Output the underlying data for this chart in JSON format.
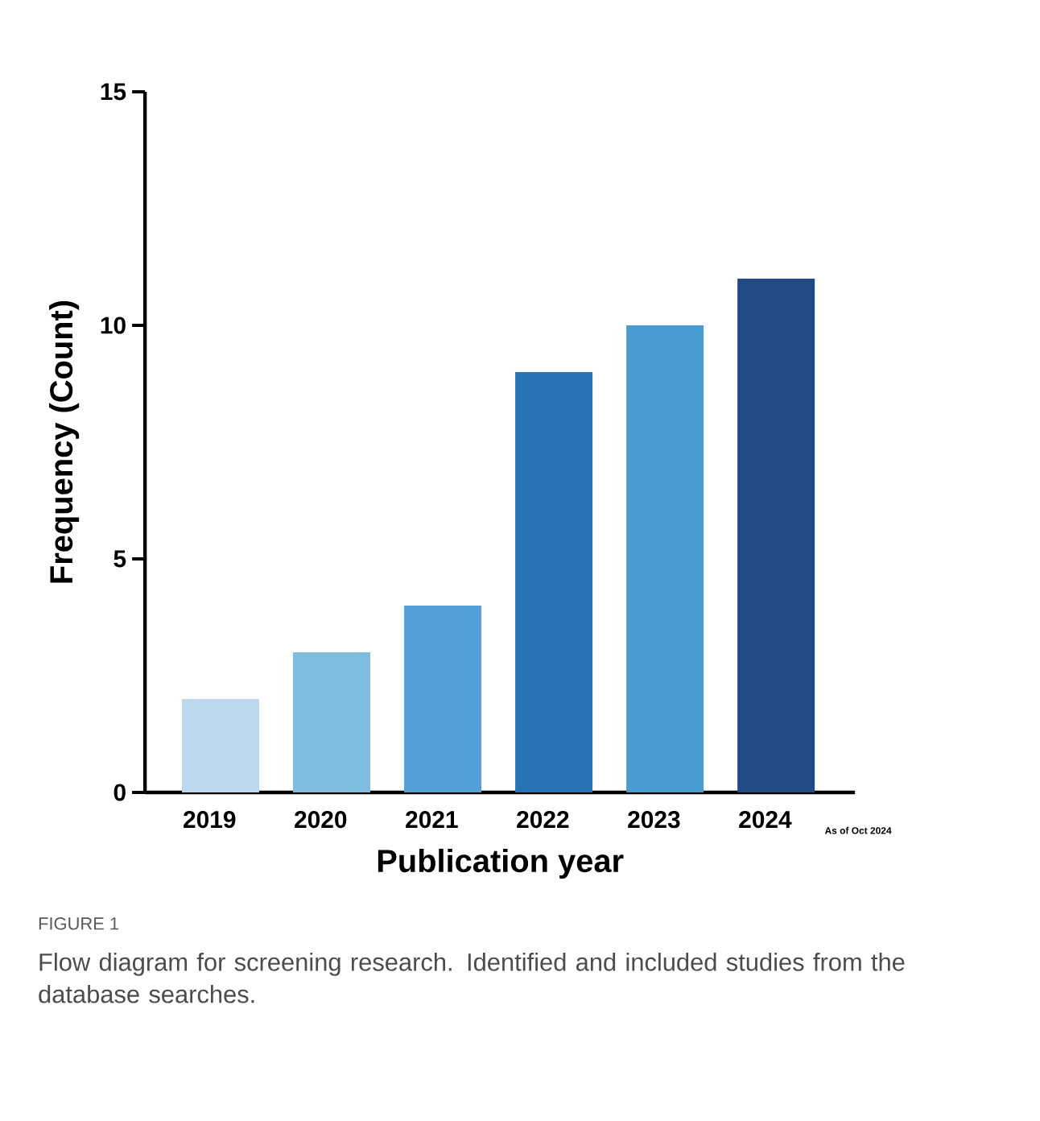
{
  "chart_data": {
    "type": "bar",
    "categories": [
      "2019",
      "2020",
      "2021",
      "2022",
      "2023",
      "2024"
    ],
    "values": [
      2,
      3,
      4,
      9,
      10,
      11
    ],
    "colors": [
      "#bdd7ee",
      "#7fbde0",
      "#559fd8",
      "#2872b6",
      "#4a9bcf",
      "#214a85"
    ],
    "xlabel": "Publication year",
    "ylabel": "Frequency (Count)",
    "ylim": [
      0,
      15
    ],
    "yticks": [
      0,
      5,
      10,
      15
    ],
    "grid": false,
    "annotations": [
      "As of Oct 2024",
      "FIGURE 1",
      "Flow diagram for screening research. Identified and included studies from the database searches."
    ]
  }
}
